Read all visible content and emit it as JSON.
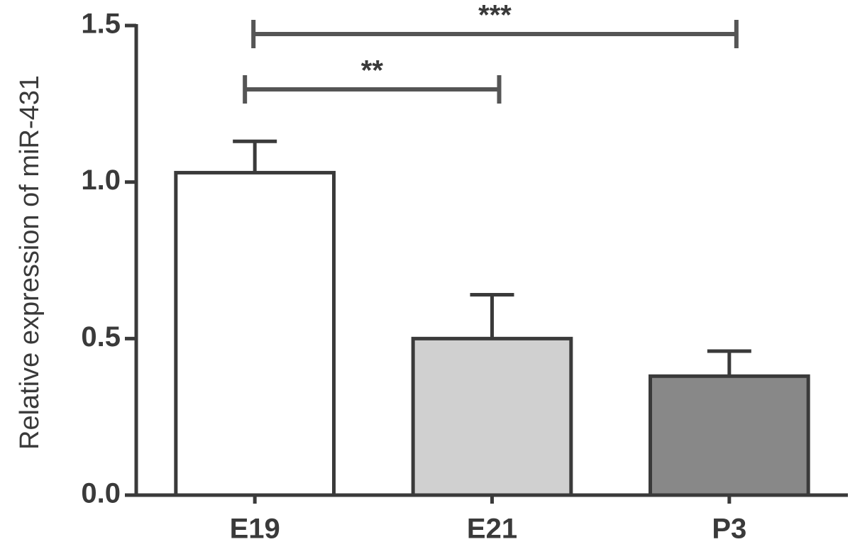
{
  "chart_data": {
    "type": "bar",
    "y_label": "Relative expression of miR-431",
    "categories": [
      "E19",
      "E21",
      "P3"
    ],
    "values": [
      1.03,
      0.5,
      0.38
    ],
    "errors": [
      0.1,
      0.14,
      0.08
    ],
    "colors": [
      "#ffffff",
      "#d0d0d0",
      "#888888"
    ],
    "ylim": [
      0,
      1.5
    ],
    "yticks": [
      {
        "value": 0,
        "label": "0.0"
      },
      {
        "value": 0.5,
        "label": "0.5"
      },
      {
        "value": 1,
        "label": "1.0"
      },
      {
        "value": 1.5,
        "label": "1.5"
      }
    ],
    "annotations": [
      {
        "text": "**",
        "from": "E19",
        "to": "E21"
      },
      {
        "text": "***",
        "from": "E19",
        "to": "P3"
      }
    ]
  }
}
